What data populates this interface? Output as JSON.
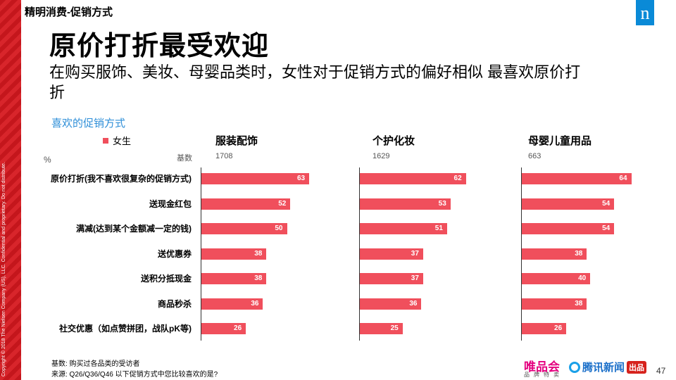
{
  "header": {
    "section": "精明消费-促销方式",
    "logo_letter": "n"
  },
  "title": "原价打折最受欢迎",
  "subtitle": "在购买服饰、美妆、母婴品类时，女性对于促销方式的偏好相似 最喜欢原价打折",
  "side_note": "Copyright © 2018 The Nielsen Company (US), LLC. Confidential and proprietary. Do not distribute.",
  "chart_data": {
    "type": "bar",
    "caption": "喜欢的促销方式",
    "unit": "%",
    "legend": [
      {
        "name": "女生",
        "color": "#f04f5c"
      }
    ],
    "base_label": "基数",
    "xlim": [
      0,
      100
    ],
    "categories": [
      "原价打折(我不喜欢很复杂的促销方式)",
      "送现金红包",
      "满减(达到某个金额减一定的钱)",
      "送优惠券",
      "送积分抵现金",
      "商品秒杀",
      "社交优惠（如点赞拼团，战队pK等)"
    ],
    "panels": [
      {
        "title": "服装配饰",
        "base": "1708",
        "values": [
          63,
          52,
          50,
          38,
          38,
          36,
          26
        ]
      },
      {
        "title": "个护化妆",
        "base": "1629",
        "values": [
          62,
          53,
          51,
          37,
          37,
          36,
          25
        ]
      },
      {
        "title": "母婴儿童用品",
        "base": "663",
        "values": [
          64,
          54,
          54,
          38,
          40,
          38,
          26
        ]
      }
    ]
  },
  "footnotes": {
    "base": "基数:   购买过各品类的受访者",
    "source": "来源:     Q26/Q36/Q46 以下促销方式中您比较喜欢的是?"
  },
  "brands": {
    "vip": "唯品会",
    "vip_sub": "品牌特卖",
    "qq": "腾讯新闻",
    "qq_badge": "出品"
  },
  "page_number": "47"
}
